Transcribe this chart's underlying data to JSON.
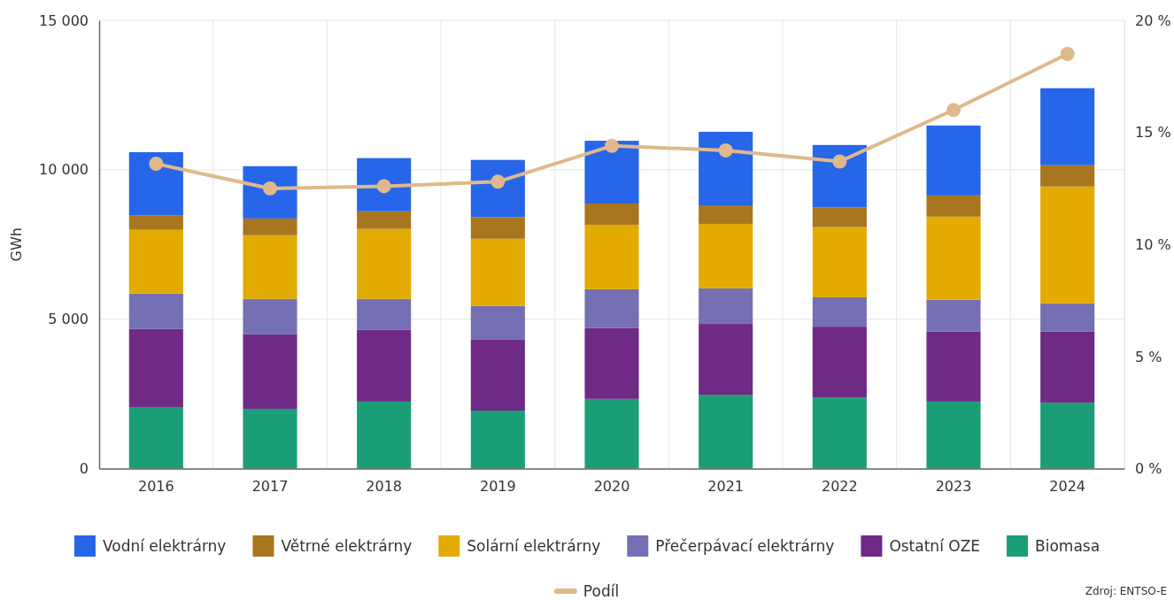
{
  "chart_data": {
    "type": "bar",
    "stacked": true,
    "ylabel": "GWh",
    "categories": [
      "2016",
      "2017",
      "2018",
      "2019",
      "2020",
      "2021",
      "2022",
      "2023",
      "2024"
    ],
    "series": [
      {
        "name": "Biomasa",
        "color": "#1b9e77",
        "values": [
          2060,
          2000,
          2240,
          1940,
          2330,
          2470,
          2380,
          2240,
          2210
        ]
      },
      {
        "name": "Ostatní OZE",
        "color": "#6f2a86",
        "values": [
          2610,
          2490,
          2400,
          2370,
          2370,
          2370,
          2370,
          2340,
          2370
        ]
      },
      {
        "name": "Přečerpávací elektrárny",
        "color": "#7570b3",
        "values": [
          1190,
          1190,
          1040,
          1130,
          1300,
          1190,
          980,
          1070,
          950
        ]
      },
      {
        "name": "Solární elektrárny",
        "color": "#e3ab00",
        "values": [
          2130,
          2130,
          2340,
          2250,
          2160,
          2160,
          2350,
          2780,
          3910
        ]
      },
      {
        "name": "Větrné elektrárny",
        "color": "#a8761e",
        "values": [
          490,
          560,
          590,
          720,
          710,
          620,
          660,
          710,
          710
        ]
      },
      {
        "name": "Vodní elektrárny",
        "color": "#2766e8",
        "values": [
          2110,
          1750,
          1780,
          1920,
          2100,
          2460,
          2090,
          2340,
          2580
        ]
      },
      {
        "name": "Podíl",
        "type": "line",
        "axis": "y2",
        "color": "#dfb98c",
        "values": [
          13.6,
          12.5,
          12.6,
          12.8,
          14.4,
          14.2,
          13.7,
          16.0,
          18.5
        ]
      }
    ],
    "ylim": [
      0,
      15000
    ],
    "yticks": [
      0,
      {
        "value": 5000,
        "label": "5 000"
      },
      {
        "value": 10000,
        "label": "10 000"
      },
      {
        "value": 15000,
        "label": "15 000"
      }
    ],
    "y2lim": [
      0,
      20
    ],
    "y2ticks": [
      {
        "value": 0,
        "label": "0 %"
      },
      {
        "value": 5,
        "label": "5 %"
      },
      {
        "value": 10,
        "label": "10 %"
      },
      {
        "value": 15,
        "label": "15 %"
      },
      {
        "value": 20,
        "label": "20 %"
      }
    ],
    "grid": true,
    "legend": "bottom",
    "marker": "circle",
    "line_style": "solid",
    "annotations": [
      "Zdroj: ENTSO-E"
    ]
  }
}
